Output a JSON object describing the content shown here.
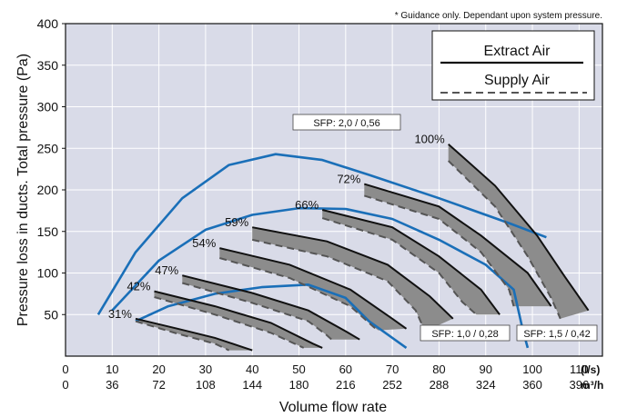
{
  "chart_data": {
    "type": "line",
    "note": "* Guidance only. Dependant upon system pressure.",
    "ylabel": "Pressure loss in ducts. Total pressure (Pa)",
    "xlabel": "Volume flow rate",
    "xlim": [
      0,
      115
    ],
    "ylim": [
      0,
      400
    ],
    "x_ticks_ls": [
      "0",
      "10",
      "20",
      "30",
      "40",
      "50",
      "60",
      "70",
      "80",
      "90",
      "100",
      "110"
    ],
    "x_ticks_m3h": [
      "0",
      "36",
      "72",
      "108",
      "144",
      "180",
      "216",
      "252",
      "288",
      "324",
      "360",
      "396"
    ],
    "x_unit_ls": "(l/s)",
    "x_unit_m3h": "m³/h",
    "y_ticks": [
      "50",
      "100",
      "150",
      "200",
      "250",
      "300",
      "350",
      "400"
    ],
    "grid": true,
    "legend_position": "top-right",
    "legend": {
      "extract": "Extract Air",
      "supply": "Supply Air"
    },
    "colors": {
      "plot_bg": "#d9dbe8",
      "band": "#8c8c8c",
      "curve": "#1a6fb8",
      "extract": "#111111",
      "supply": "#555555"
    },
    "fan_curves": [
      {
        "label": "31%",
        "extract": [
          [
            15,
            45
          ],
          [
            24,
            33
          ],
          [
            32,
            22
          ],
          [
            40,
            7
          ]
        ],
        "supply": [
          [
            15,
            42
          ],
          [
            24,
            27
          ],
          [
            32,
            15
          ],
          [
            35,
            7
          ]
        ]
      },
      {
        "label": "42%",
        "extract": [
          [
            19,
            78
          ],
          [
            32,
            60
          ],
          [
            44,
            40
          ],
          [
            53,
            15
          ],
          [
            55,
            10
          ]
        ],
        "supply": [
          [
            19,
            71
          ],
          [
            32,
            50
          ],
          [
            44,
            28
          ],
          [
            51,
            10
          ]
        ]
      },
      {
        "label": "47%",
        "extract": [
          [
            25,
            97
          ],
          [
            40,
            76
          ],
          [
            52,
            55
          ],
          [
            60,
            30
          ],
          [
            63,
            20
          ]
        ],
        "supply": [
          [
            25,
            88
          ],
          [
            40,
            64
          ],
          [
            52,
            42
          ],
          [
            56,
            25
          ],
          [
            57,
            20
          ]
        ]
      },
      {
        "label": "54%",
        "extract": [
          [
            33,
            130
          ],
          [
            48,
            110
          ],
          [
            61,
            80
          ],
          [
            70,
            45
          ],
          [
            73,
            33
          ]
        ],
        "supply": [
          [
            33,
            118
          ],
          [
            48,
            94
          ],
          [
            61,
            60
          ],
          [
            66,
            35
          ],
          [
            67,
            31
          ]
        ]
      },
      {
        "label": "59%",
        "extract": [
          [
            40,
            155
          ],
          [
            56,
            138
          ],
          [
            69,
            110
          ],
          [
            78,
            72
          ],
          [
            83,
            45
          ]
        ],
        "supply": [
          [
            40,
            140
          ],
          [
            56,
            120
          ],
          [
            69,
            90
          ],
          [
            75,
            55
          ],
          [
            77,
            30
          ]
        ]
      },
      {
        "label": "66%",
        "extract": [
          [
            55,
            176
          ],
          [
            70,
            155
          ],
          [
            80,
            120
          ],
          [
            89,
            80
          ],
          [
            93,
            50
          ]
        ],
        "supply": [
          [
            55,
            166
          ],
          [
            70,
            140
          ],
          [
            80,
            100
          ],
          [
            85,
            65
          ],
          [
            88,
            50
          ]
        ]
      },
      {
        "label": "72%",
        "extract": [
          [
            64,
            207
          ],
          [
            80,
            180
          ],
          [
            89,
            145
          ],
          [
            99,
            100
          ],
          [
            104,
            60
          ]
        ],
        "supply": [
          [
            64,
            193
          ],
          [
            80,
            165
          ],
          [
            89,
            125
          ],
          [
            95,
            80
          ],
          [
            96,
            60
          ]
        ]
      },
      {
        "label": "100%",
        "extract": [
          [
            82,
            255
          ],
          [
            92,
            205
          ],
          [
            101,
            145
          ],
          [
            107,
            95
          ],
          [
            112,
            55
          ]
        ],
        "supply": [
          [
            82,
            235
          ],
          [
            92,
            180
          ],
          [
            99,
            120
          ],
          [
            104,
            70
          ],
          [
            106,
            45
          ]
        ]
      }
    ],
    "sfp_curves": [
      {
        "label": "SFP: 2,0 / 0,56",
        "points": [
          [
            7,
            50
          ],
          [
            15,
            125
          ],
          [
            25,
            190
          ],
          [
            35,
            230
          ],
          [
            45,
            243
          ],
          [
            55,
            236
          ],
          [
            65,
            218
          ],
          [
            80,
            190
          ],
          [
            95,
            160
          ],
          [
            103,
            143
          ]
        ]
      },
      {
        "label": "SFP: 1,5 / 0,42",
        "points": [
          [
            10,
            55
          ],
          [
            20,
            115
          ],
          [
            30,
            152
          ],
          [
            40,
            170
          ],
          [
            50,
            178
          ],
          [
            60,
            177
          ],
          [
            70,
            165
          ],
          [
            80,
            140
          ],
          [
            90,
            110
          ],
          [
            96,
            80
          ],
          [
            98,
            30
          ],
          [
            99,
            10
          ]
        ]
      },
      {
        "label": "SFP: 1,0 / 0,28",
        "points": [
          [
            15,
            42
          ],
          [
            22,
            60
          ],
          [
            32,
            75
          ],
          [
            42,
            83
          ],
          [
            52,
            86
          ],
          [
            60,
            70
          ],
          [
            65,
            42
          ],
          [
            73,
            10
          ]
        ]
      }
    ]
  }
}
